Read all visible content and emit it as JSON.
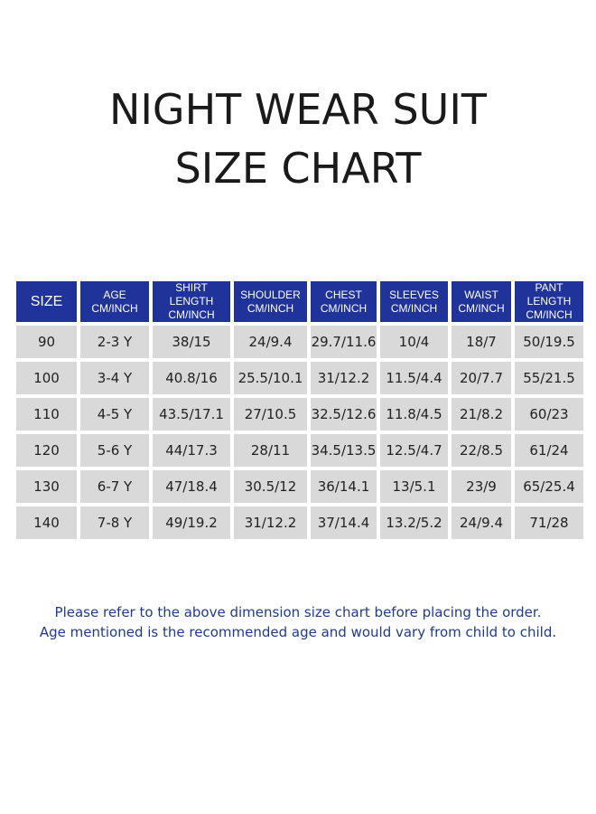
{
  "title": {
    "line1": "NIGHT WEAR SUIT",
    "line2": "SIZE CHART"
  },
  "colors": {
    "header_bg": "#20339a",
    "cell_bg": "#d9d9d9",
    "note_text": "#1f3a8f"
  },
  "table": {
    "headers": [
      {
        "line1": "SIZE",
        "line2": ""
      },
      {
        "line1": "AGE",
        "line2": "CM/INCH"
      },
      {
        "line1": "SHIRT LENGTH",
        "line2": "CM/INCH"
      },
      {
        "line1": "SHOULDER",
        "line2": "CM/INCH"
      },
      {
        "line1": "CHEST",
        "line2": "CM/INCH"
      },
      {
        "line1": "SLEEVES",
        "line2": "CM/INCH"
      },
      {
        "line1": "WAIST",
        "line2": "CM/INCH"
      },
      {
        "line1": "PANT LENGTH",
        "line2": "CM/INCH"
      }
    ],
    "rows": [
      [
        "90",
        "2-3 Y",
        "38/15",
        "24/9.4",
        "29.7/11.6",
        "10/4",
        "18/7",
        "50/19.5"
      ],
      [
        "100",
        "3-4 Y",
        "40.8/16",
        "25.5/10.1",
        "31/12.2",
        "11.5/4.4",
        "20/7.7",
        "55/21.5"
      ],
      [
        "110",
        "4-5 Y",
        "43.5/17.1",
        "27/10.5",
        "32.5/12.6",
        "11.8/4.5",
        "21/8.2",
        "60/23"
      ],
      [
        "120",
        "5-6 Y",
        "44/17.3",
        "28/11",
        "34.5/13.5",
        "12.5/4.7",
        "22/8.5",
        "61/24"
      ],
      [
        "130",
        "6-7 Y",
        "47/18.4",
        "30.5/12",
        "36/14.1",
        "13/5.1",
        "23/9",
        "65/25.4"
      ],
      [
        "140",
        "7-8 Y",
        "49/19.2",
        "31/12.2",
        "37/14.4",
        "13.2/5.2",
        "24/9.4",
        "71/28"
      ]
    ]
  },
  "notes": {
    "line1": "Please refer to the above dimension size chart before placing the order.",
    "line2": "Age mentioned is the recommended age and would vary from child to child."
  }
}
